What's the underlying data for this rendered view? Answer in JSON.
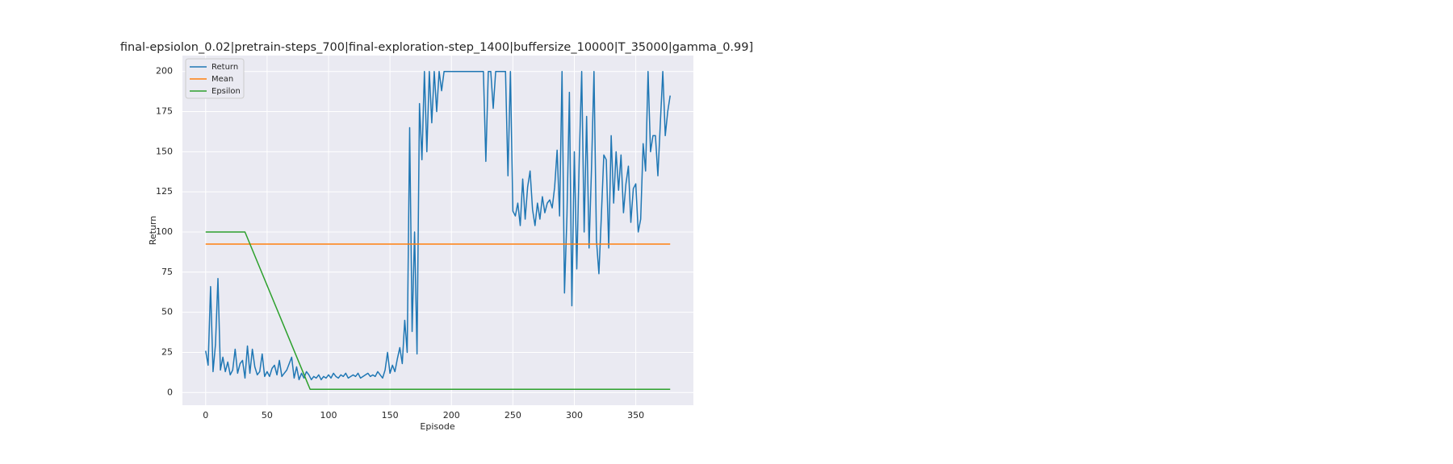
{
  "chart_data": {
    "type": "line",
    "title": "final-epsiolon_0.02|pretrain-steps_700|final-exploration-step_1400|buffersize_10000|T_35000|gamma_0.99]",
    "x_label": "Episode",
    "y_label": "Return",
    "xlim": [
      -18.9,
      396.9
    ],
    "ylim": [
      -7.9,
      209.9
    ],
    "xticks": [
      0,
      50,
      100,
      150,
      200,
      250,
      300,
      350
    ],
    "yticks": [
      0,
      25,
      50,
      75,
      100,
      125,
      150,
      175,
      200
    ],
    "grid": true,
    "legend": "upper left",
    "series": [
      {
        "name": "Return",
        "color": "#1f77b4",
        "x": [
          0,
          2,
          4,
          6,
          8,
          10,
          12,
          14,
          16,
          18,
          20,
          22,
          24,
          26,
          28,
          30,
          32,
          34,
          36,
          38,
          40,
          42,
          44,
          46,
          48,
          50,
          52,
          54,
          56,
          58,
          60,
          62,
          64,
          66,
          68,
          70,
          72,
          74,
          76,
          78,
          80,
          82,
          84,
          86,
          88,
          90,
          92,
          94,
          96,
          98,
          100,
          102,
          104,
          106,
          108,
          110,
          112,
          114,
          116,
          118,
          120,
          122,
          124,
          126,
          128,
          130,
          132,
          134,
          136,
          138,
          140,
          142,
          144,
          146,
          148,
          150,
          152,
          154,
          156,
          158,
          160,
          162,
          164,
          166,
          168,
          170,
          172,
          174,
          176,
          178,
          180,
          182,
          184,
          186,
          188,
          190,
          192,
          194,
          196,
          198,
          200,
          202,
          204,
          206,
          208,
          210,
          212,
          214,
          216,
          218,
          220,
          222,
          224,
          226,
          228,
          230,
          232,
          234,
          236,
          238,
          240,
          242,
          244,
          246,
          248,
          250,
          252,
          254,
          256,
          258,
          260,
          262,
          264,
          266,
          268,
          270,
          272,
          274,
          276,
          278,
          280,
          282,
          284,
          286,
          288,
          290,
          292,
          294,
          296,
          298,
          300,
          302,
          304,
          306,
          308,
          310,
          312,
          314,
          316,
          318,
          320,
          322,
          324,
          326,
          328,
          330,
          332,
          334,
          336,
          338,
          340,
          342,
          344,
          346,
          348,
          350,
          352,
          354,
          356,
          358,
          360,
          362,
          364,
          366,
          368,
          370,
          372,
          374,
          376,
          378
        ],
        "values": [
          26,
          17,
          66,
          13,
          30,
          71,
          14,
          22,
          13,
          19,
          11,
          14,
          27,
          12,
          18,
          20,
          9,
          29,
          12,
          27,
          16,
          11,
          13,
          24,
          10,
          13,
          10,
          15,
          17,
          11,
          20,
          10,
          12,
          14,
          18,
          22,
          9,
          16,
          8,
          12,
          9,
          13,
          11,
          8,
          10,
          9,
          11,
          8,
          10,
          9,
          11,
          9,
          12,
          10,
          9,
          11,
          10,
          12,
          9,
          10,
          11,
          10,
          12,
          9,
          10,
          11,
          12,
          10,
          11,
          10,
          13,
          11,
          9,
          14,
          25,
          12,
          17,
          13,
          21,
          28,
          18,
          45,
          25,
          165,
          38,
          100,
          24,
          180,
          145,
          200,
          150,
          200,
          168,
          200,
          175,
          200,
          188,
          200,
          200,
          200,
          200,
          200,
          200,
          200,
          200,
          200,
          200,
          200,
          200,
          200,
          200,
          200,
          200,
          200,
          144,
          200,
          200,
          177,
          200,
          200,
          200,
          200,
          200,
          135,
          200,
          113,
          110,
          118,
          104,
          133,
          108,
          128,
          138,
          114,
          104,
          118,
          108,
          122,
          112,
          118,
          120,
          115,
          128,
          151,
          110,
          200,
          62,
          110,
          187,
          54,
          150,
          77,
          145,
          200,
          100,
          172,
          90,
          140,
          200,
          95,
          74,
          110,
          148,
          145,
          90,
          160,
          118,
          150,
          126,
          148,
          112,
          130,
          141,
          106,
          127,
          130,
          100,
          108,
          155,
          138,
          200,
          150,
          160,
          160,
          135,
          168,
          200,
          160,
          175,
          185
        ]
      },
      {
        "name": "Mean",
        "color": "#ff7f0e",
        "x": [
          0,
          378
        ],
        "values": [
          92.5,
          92.5
        ]
      },
      {
        "name": "Epsilon",
        "color": "#2ca02c",
        "x": [
          0,
          32,
          85,
          378
        ],
        "values": [
          100,
          100,
          2,
          2
        ]
      }
    ]
  }
}
